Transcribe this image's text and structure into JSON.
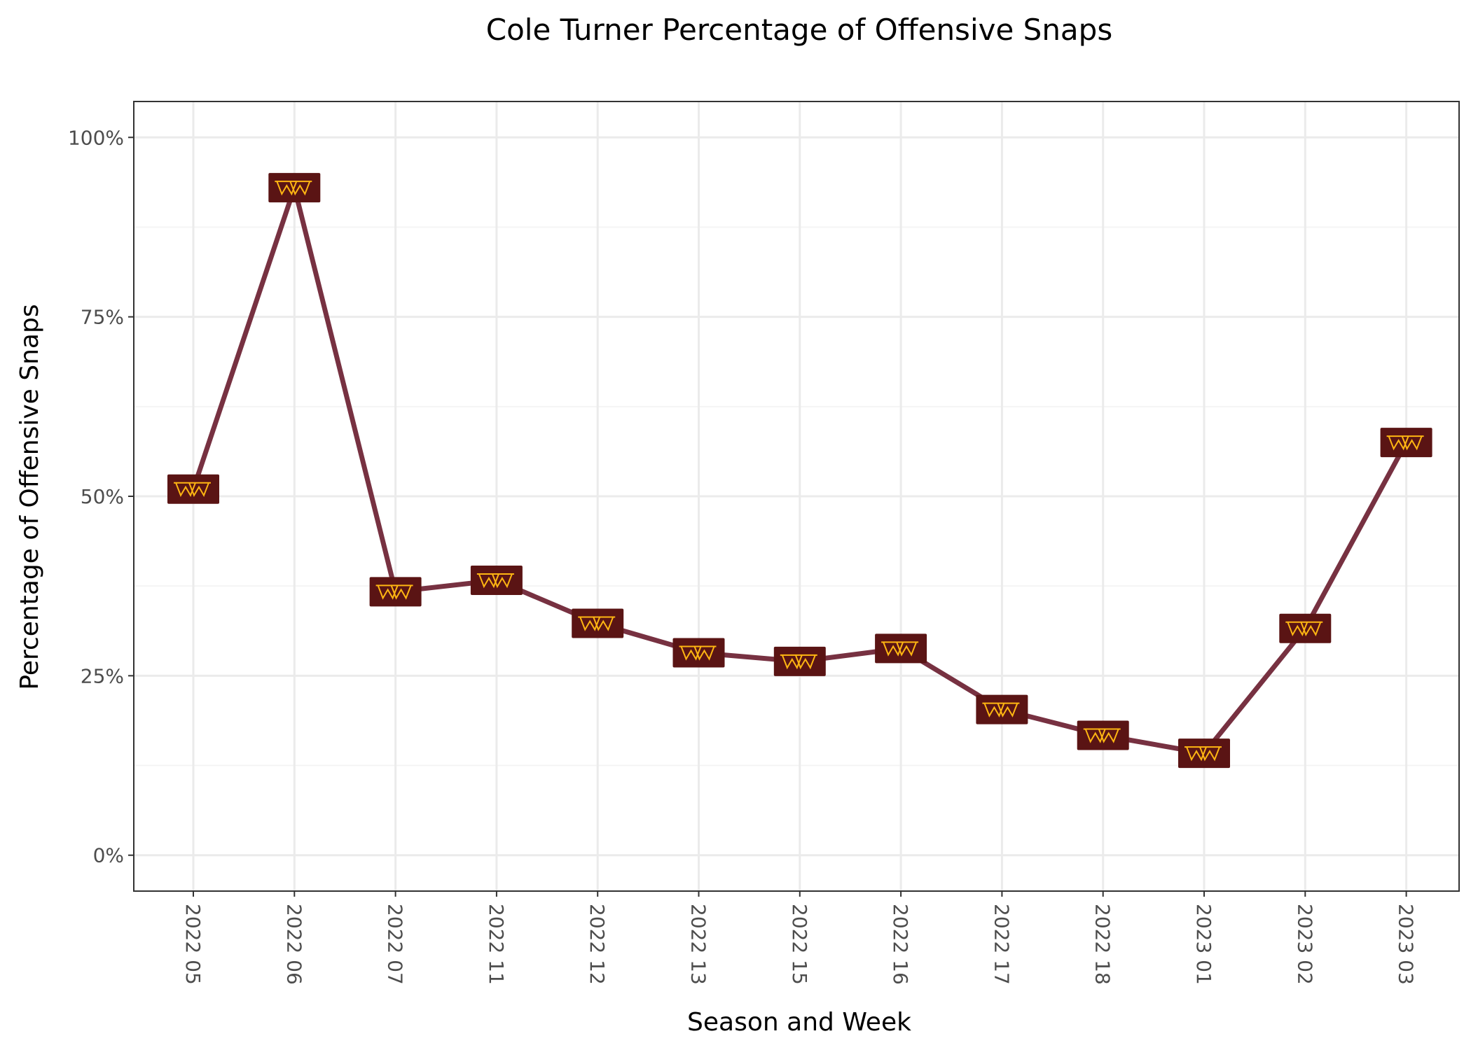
{
  "chart_data": {
    "type": "line",
    "title": "Cole Turner Percentage of Offensive Snaps",
    "xlabel": "Season and Week",
    "ylabel": "Percentage of Offensive Snaps",
    "categories": [
      "2022 05",
      "2022 06",
      "2022 07",
      "2022 11",
      "2022 12",
      "2022 13",
      "2022 15",
      "2022 16",
      "2022 17",
      "2022 18",
      "2023 01",
      "2023 02",
      "2023 03"
    ],
    "series": [
      {
        "values": [
          0.51,
          0.93,
          0.367,
          0.383,
          0.323,
          0.282,
          0.27,
          0.288,
          0.203,
          0.167,
          0.142,
          0.316,
          0.575
        ]
      }
    ],
    "ylim": [
      -0.05,
      1.05
    ],
    "yticks": [
      0,
      0.25,
      0.5,
      0.75,
      1.0
    ],
    "ytick_labels": [
      "0%",
      "25%",
      "50%",
      "75%",
      "100%"
    ],
    "grid": true,
    "colors": {
      "line": "#773141",
      "marker_bg": "#5a1414",
      "marker_fg": "#ffb612",
      "panel_border": "#333333",
      "grid_major": "#ebebeb",
      "grid_minor": "#f4f4f4"
    },
    "marker_icon": "team-logo-icon"
  }
}
